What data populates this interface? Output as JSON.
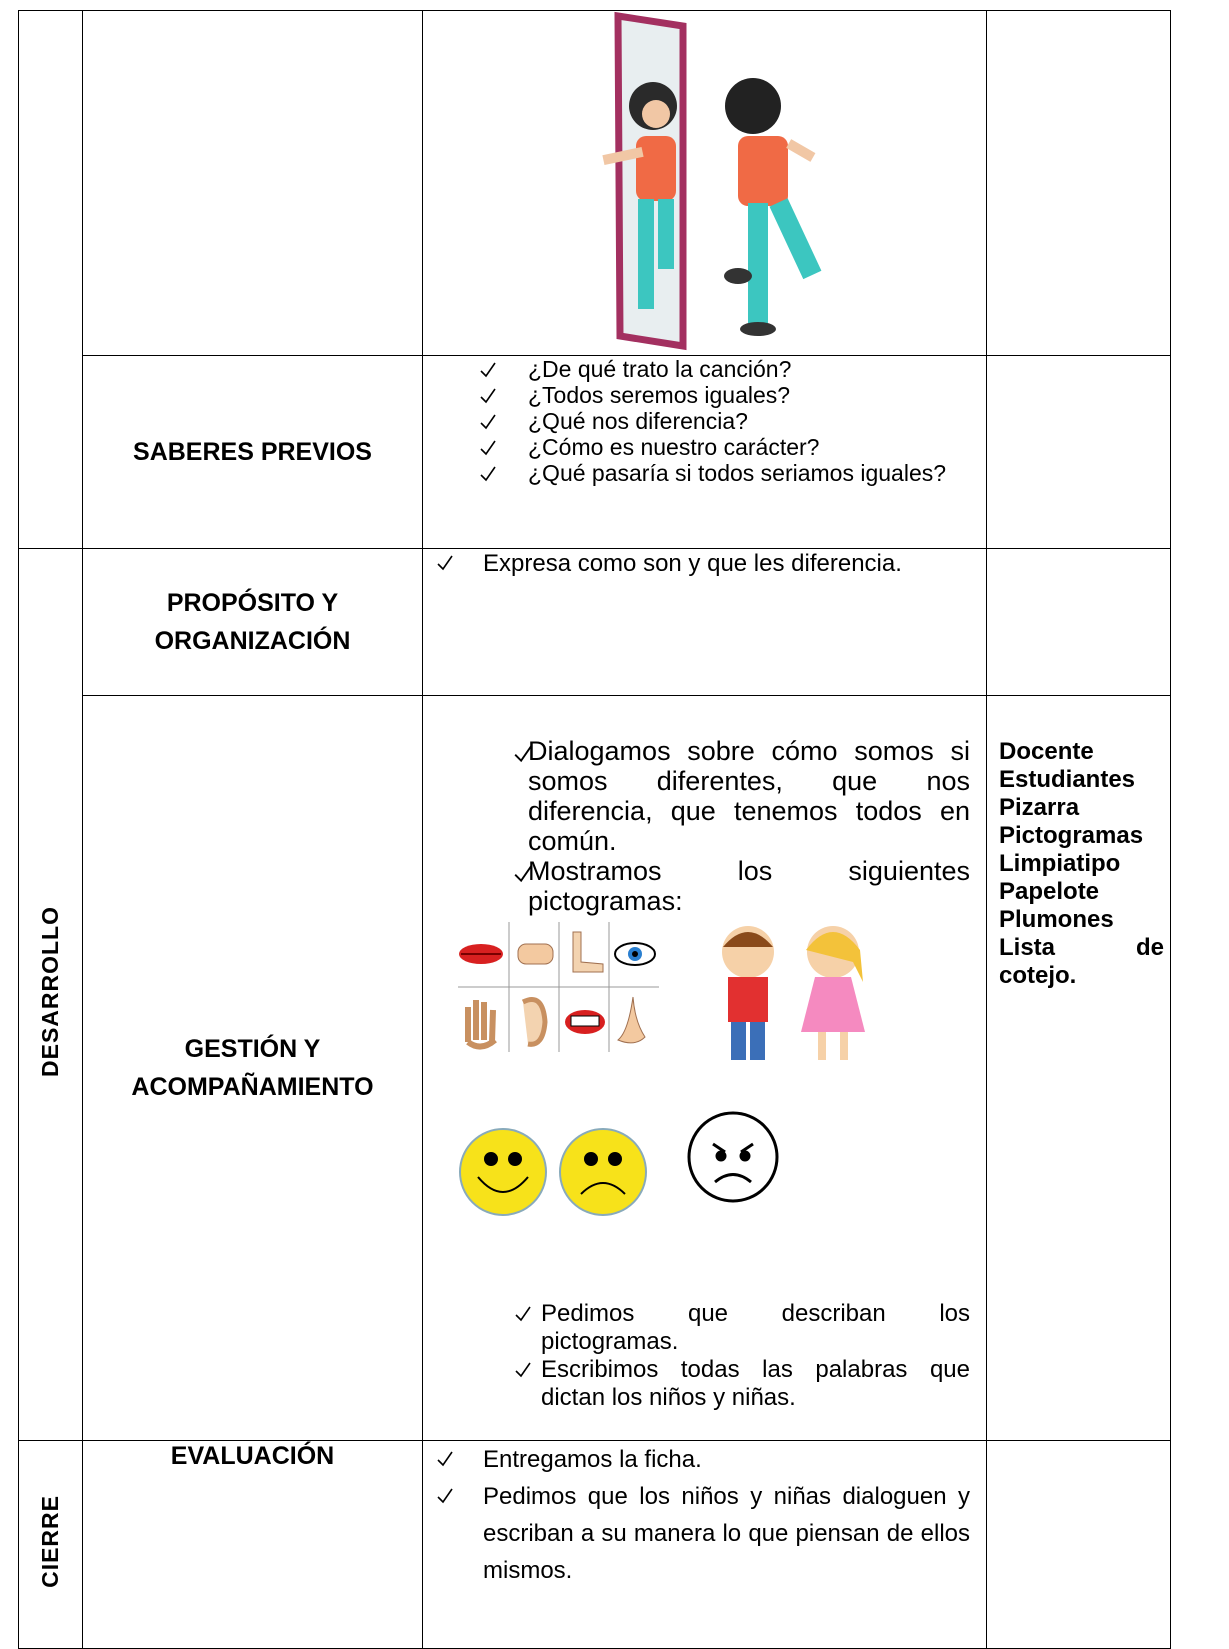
{
  "saberes_previos": {
    "title": "SABERES PREVIOS",
    "items": [
      "¿De qué trato la canción?",
      "¿Todos seremos iguales?",
      "¿Qué nos diferencia?",
      "¿Cómo es nuestro carácter?",
      "¿Qué pasaría si todos seriamos iguales?"
    ]
  },
  "desarrollo": {
    "label": "DESARROLLO",
    "proposito": {
      "title_lines": [
        "PROPÓSITO Y",
        "ORGANIZACIÓN"
      ],
      "items": [
        "Expresa como son y que les diferencia."
      ]
    },
    "gestion": {
      "title_lines": [
        "GESTIÓN Y",
        "ACOMPAÑAMIENTO"
      ],
      "items_before": [
        "Dialogamos sobre cómo somos si somos diferentes, que nos diferencia, que tenemos todos en común.",
        "Mostramos los siguientes pictogramas:"
      ],
      "items_after": [
        "Pedimos que describan los pictogramas.",
        "Escribimos todas las palabras que dictan los niños y niñas."
      ],
      "resources": [
        "Docente",
        "Estudiantes",
        "Pizarra",
        "Pictogramas",
        "Limpiatipo",
        "Papelote",
        "Plumones",
        "Lista de cotejo."
      ]
    }
  },
  "cierre": {
    "label": "CIERRE",
    "evaluacion": {
      "title": "EVALUACIÓN",
      "items": [
        "Entregamos la ficha.",
        "Pedimos que los niños y niñas dialoguen y escriban a su manera lo que piensan de ellos mismos."
      ]
    }
  }
}
